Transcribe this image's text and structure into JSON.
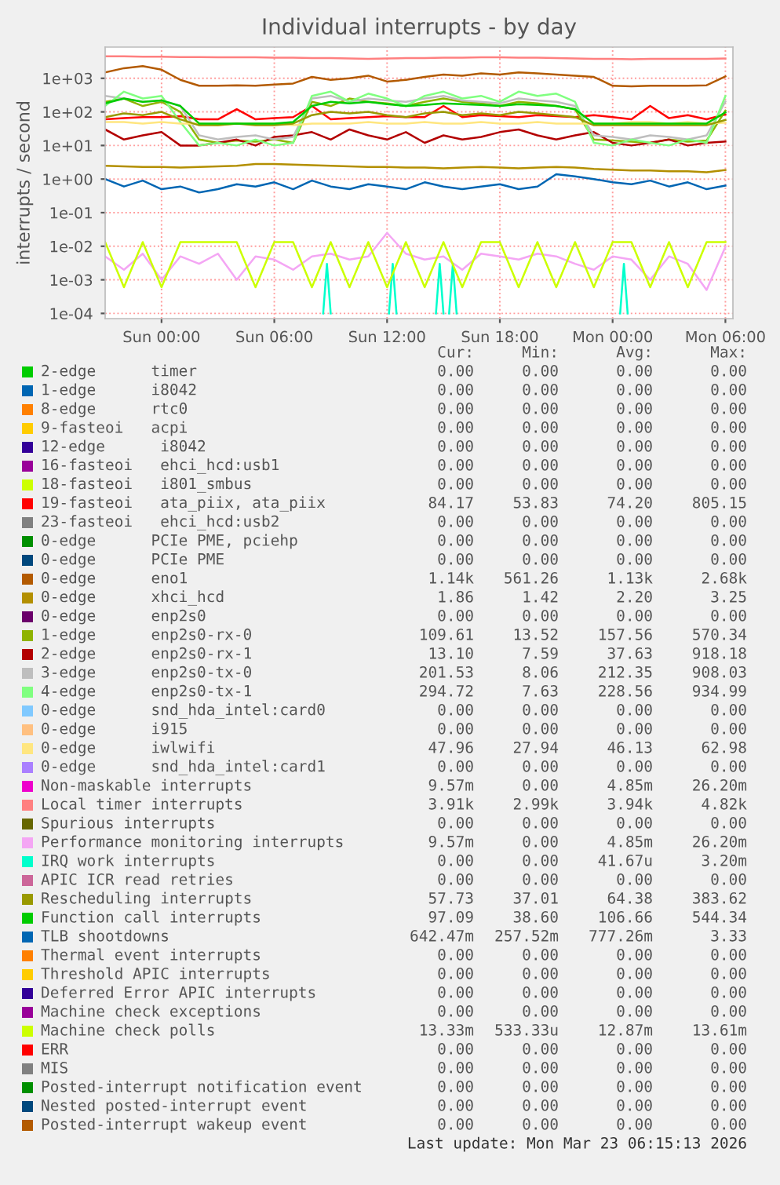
{
  "chart_data": [
    {
      "type": "line",
      "title": "Individual interrupts - by day",
      "ylabel": "interrupts / second",
      "log": "y",
      "grid": true,
      "legend": "bottom",
      "line_style": "solid",
      "marker": "none",
      "xlim": [
        "2026-03-21T21:00",
        "2026-03-23T06:24"
      ],
      "ylim": [
        7e-05,
        8500
      ],
      "xticks": [
        {
          "value": "2026-03-22T00:00",
          "label": "Sun 00:00"
        },
        {
          "value": "2026-03-22T06:00",
          "label": "Sun 06:00"
        },
        {
          "value": "2026-03-22T12:00",
          "label": "Sun 12:00"
        },
        {
          "value": "2026-03-22T18:00",
          "label": "Sun 18:00"
        },
        {
          "value": "2026-03-23T00:00",
          "label": "Mon 00:00"
        },
        {
          "value": "2026-03-23T06:00",
          "label": "Mon 06:00"
        }
      ],
      "yticks": [
        {
          "value": 0.0001,
          "label": "1e-04"
        },
        {
          "value": 0.001,
          "label": "1e-03"
        },
        {
          "value": 0.01,
          "label": "1e-02"
        },
        {
          "value": 0.1,
          "label": "1e-01"
        },
        {
          "value": 1,
          "label": "1e+00"
        },
        {
          "value": 10,
          "label": "1e+01"
        },
        {
          "value": 100,
          "label": "1e+02"
        },
        {
          "value": 1000,
          "label": "1e+03"
        }
      ],
      "x": [
        "2026-03-21T21:00",
        "2026-03-21T22:00",
        "2026-03-21T23:00",
        "2026-03-22T00:00",
        "2026-03-22T01:00",
        "2026-03-22T02:00",
        "2026-03-22T03:00",
        "2026-03-22T04:00",
        "2026-03-22T05:00",
        "2026-03-22T06:00",
        "2026-03-22T07:00",
        "2026-03-22T08:00",
        "2026-03-22T09:00",
        "2026-03-22T10:00",
        "2026-03-22T11:00",
        "2026-03-22T12:00",
        "2026-03-22T13:00",
        "2026-03-22T14:00",
        "2026-03-22T15:00",
        "2026-03-22T16:00",
        "2026-03-22T17:00",
        "2026-03-22T18:00",
        "2026-03-22T19:00",
        "2026-03-22T20:00",
        "2026-03-22T21:00",
        "2026-03-22T22:00",
        "2026-03-22T23:00",
        "2026-03-23T00:00",
        "2026-03-23T01:00",
        "2026-03-23T02:00",
        "2026-03-23T03:00",
        "2026-03-23T04:00",
        "2026-03-23T05:00",
        "2026-03-23T06:00"
      ],
      "series": [
        {
          "name": "2-edge      timer",
          "color": "#00cc00",
          "values": [
            null,
            null,
            null,
            null,
            null,
            null,
            null,
            null,
            null,
            null,
            null,
            null,
            null,
            null,
            null,
            null,
            null,
            null,
            null,
            null,
            null,
            null,
            null,
            null,
            null,
            null,
            null,
            null,
            null,
            null,
            null,
            null,
            null,
            null
          ]
        },
        {
          "name": "1-edge      i8042",
          "color": "#0066b3",
          "values": [
            null,
            null,
            null,
            null,
            null,
            null,
            null,
            null,
            null,
            null,
            null,
            null,
            null,
            null,
            null,
            null,
            null,
            null,
            null,
            null,
            null,
            null,
            null,
            null,
            null,
            null,
            null,
            null,
            null,
            null,
            null,
            null,
            null,
            null
          ]
        },
        {
          "name": "8-edge      rtc0",
          "color": "#ff8000",
          "values": [
            null,
            null,
            null,
            null,
            null,
            null,
            null,
            null,
            null,
            null,
            null,
            null,
            null,
            null,
            null,
            null,
            null,
            null,
            null,
            null,
            null,
            null,
            null,
            null,
            null,
            null,
            null,
            null,
            null,
            null,
            null,
            null,
            null,
            null
          ]
        },
        {
          "name": "9-fasteoi   acpi",
          "color": "#ffcc00",
          "values": [
            null,
            null,
            null,
            null,
            null,
            null,
            null,
            null,
            null,
            null,
            null,
            null,
            null,
            null,
            null,
            null,
            null,
            null,
            null,
            null,
            null,
            null,
            null,
            null,
            null,
            null,
            null,
            null,
            null,
            null,
            null,
            null,
            null,
            null
          ]
        },
        {
          "name": "12-edge      i8042",
          "color": "#330099",
          "values": [
            null,
            null,
            null,
            null,
            null,
            null,
            null,
            null,
            null,
            null,
            null,
            null,
            null,
            null,
            null,
            null,
            null,
            null,
            null,
            null,
            null,
            null,
            null,
            null,
            null,
            null,
            null,
            null,
            null,
            null,
            null,
            null,
            null,
            null
          ]
        },
        {
          "name": "16-fasteoi   ehci_hcd:usb1",
          "color": "#990099",
          "values": [
            null,
            null,
            null,
            null,
            null,
            null,
            null,
            null,
            null,
            null,
            null,
            null,
            null,
            null,
            null,
            null,
            null,
            null,
            null,
            null,
            null,
            null,
            null,
            null,
            null,
            null,
            null,
            null,
            null,
            null,
            null,
            null,
            null,
            null
          ]
        },
        {
          "name": "18-fasteoi   i801_smbus",
          "color": "#ccff00",
          "values": [
            null,
            null,
            null,
            null,
            null,
            null,
            null,
            null,
            null,
            null,
            null,
            null,
            null,
            null,
            null,
            null,
            null,
            null,
            null,
            null,
            null,
            null,
            null,
            null,
            null,
            null,
            null,
            null,
            null,
            null,
            null,
            null,
            null,
            null
          ]
        },
        {
          "name": "19-fasteoi   ata_piix, ata_piix",
          "color": "#ff0000",
          "values": [
            60,
            65,
            70,
            70,
            75,
            60,
            60,
            120,
            60,
            65,
            70,
            150,
            60,
            65,
            70,
            75,
            70,
            70,
            150,
            70,
            80,
            75,
            70,
            80,
            75,
            70,
            80,
            70,
            60,
            150,
            65,
            80,
            60,
            84.17
          ]
        },
        {
          "name": "23-fasteoi   ehci_hcd:usb2",
          "color": "#808080",
          "values": [
            null,
            null,
            null,
            null,
            null,
            null,
            null,
            null,
            null,
            null,
            null,
            null,
            null,
            null,
            null,
            null,
            null,
            null,
            null,
            null,
            null,
            null,
            null,
            null,
            null,
            null,
            null,
            null,
            null,
            null,
            null,
            null,
            null,
            null
          ]
        },
        {
          "name": "0-edge      PCIe PME, pciehp",
          "color": "#008f00",
          "values": [
            null,
            null,
            null,
            null,
            null,
            null,
            null,
            null,
            null,
            null,
            null,
            null,
            null,
            null,
            null,
            null,
            null,
            null,
            null,
            null,
            null,
            null,
            null,
            null,
            null,
            null,
            null,
            null,
            null,
            null,
            null,
            null,
            null,
            null
          ]
        },
        {
          "name": "0-edge      PCIe PME",
          "color": "#00487d",
          "values": [
            null,
            null,
            null,
            null,
            null,
            null,
            null,
            null,
            null,
            null,
            null,
            null,
            null,
            null,
            null,
            null,
            null,
            null,
            null,
            null,
            null,
            null,
            null,
            null,
            null,
            null,
            null,
            null,
            null,
            null,
            null,
            null,
            null,
            null
          ]
        },
        {
          "name": "0-edge      eno1",
          "color": "#b35a00",
          "values": [
            1500,
            2000,
            2300,
            1800,
            900,
            600,
            600,
            620,
            600,
            650,
            700,
            1100,
            900,
            1000,
            1200,
            800,
            900,
            1100,
            1300,
            1200,
            1400,
            1300,
            1500,
            1400,
            1300,
            1200,
            1100,
            600,
            580,
            600,
            600,
            600,
            620,
            1140
          ]
        },
        {
          "name": "0-edge      xhci_hcd",
          "color": "#b38f00",
          "values": [
            2.5,
            2.4,
            2.3,
            2.3,
            2.2,
            2.3,
            2.4,
            2.5,
            2.8,
            2.8,
            2.7,
            2.6,
            2.5,
            2.4,
            2.3,
            2.3,
            2.2,
            2.2,
            2.1,
            2.2,
            2.3,
            2.2,
            2.1,
            2.2,
            2.3,
            2.2,
            2.0,
            1.9,
            1.8,
            1.8,
            1.7,
            1.7,
            1.6,
            1.86
          ]
        },
        {
          "name": "0-edge      enp2s0",
          "color": "#6b006b",
          "values": [
            null,
            null,
            null,
            null,
            null,
            null,
            null,
            null,
            null,
            null,
            null,
            null,
            null,
            null,
            null,
            null,
            null,
            null,
            null,
            null,
            null,
            null,
            null,
            null,
            null,
            null,
            null,
            null,
            null,
            null,
            null,
            null,
            null,
            null
          ]
        },
        {
          "name": "1-edge      enp2s0-rx-0",
          "color": "#8fb300",
          "values": [
            200,
            250,
            150,
            200,
            100,
            15,
            12,
            14,
            13,
            15,
            12,
            200,
            150,
            250,
            200,
            180,
            150,
            200,
            250,
            200,
            180,
            150,
            200,
            180,
            150,
            120,
            15,
            14,
            13,
            12,
            15,
            13,
            14,
            109.61
          ]
        },
        {
          "name": "2-edge      enp2s0-rx-1",
          "color": "#b30000",
          "values": [
            30,
            15,
            20,
            25,
            10,
            10,
            12,
            15,
            10,
            18,
            20,
            25,
            15,
            30,
            20,
            15,
            25,
            12,
            20,
            15,
            18,
            25,
            30,
            20,
            15,
            20,
            25,
            12,
            10,
            12,
            15,
            10,
            12,
            13.1
          ]
        },
        {
          "name": "3-edge      enp2s0-tx-0",
          "color": "#bebebe",
          "values": [
            300,
            250,
            200,
            220,
            150,
            20,
            15,
            18,
            20,
            15,
            18,
            250,
            300,
            200,
            250,
            220,
            200,
            250,
            300,
            220,
            200,
            180,
            250,
            220,
            200,
            150,
            20,
            18,
            15,
            20,
            18,
            15,
            20,
            201.53
          ]
        },
        {
          "name": "4-edge      enp2s0-tx-1",
          "color": "#80ff80",
          "values": [
            150,
            400,
            250,
            300,
            50,
            10,
            12,
            10,
            15,
            10,
            12,
            300,
            400,
            200,
            350,
            250,
            150,
            300,
            400,
            250,
            300,
            200,
            400,
            300,
            350,
            200,
            12,
            10,
            15,
            12,
            10,
            15,
            12,
            294.72
          ]
        },
        {
          "name": "0-edge      snd_hda_intel:card0",
          "color": "#80c9ff",
          "values": [
            null,
            null,
            null,
            null,
            null,
            null,
            null,
            null,
            null,
            null,
            null,
            null,
            null,
            null,
            null,
            null,
            null,
            null,
            null,
            null,
            null,
            null,
            null,
            null,
            null,
            null,
            null,
            null,
            null,
            null,
            null,
            null,
            null,
            null
          ]
        },
        {
          "name": "0-edge      i915",
          "color": "#ffc080",
          "values": [
            null,
            null,
            null,
            null,
            null,
            null,
            null,
            null,
            null,
            null,
            null,
            null,
            null,
            null,
            null,
            null,
            null,
            null,
            null,
            null,
            null,
            null,
            null,
            null,
            null,
            null,
            null,
            null,
            null,
            null,
            null,
            null,
            null,
            null
          ]
        },
        {
          "name": "0-edge      iwlwifi",
          "color": "#ffe680",
          "values": [
            50,
            50,
            45,
            50,
            45,
            45,
            40,
            45,
            45,
            45,
            40,
            45,
            45,
            45,
            50,
            45,
            45,
            50,
            45,
            45,
            50,
            45,
            45,
            50,
            45,
            45,
            45,
            45,
            50,
            50,
            45,
            50,
            45,
            47.96
          ]
        },
        {
          "name": "0-edge      snd_hda_intel:card1",
          "color": "#aa80ff",
          "values": [
            null,
            null,
            null,
            null,
            null,
            null,
            null,
            null,
            null,
            null,
            null,
            null,
            null,
            null,
            null,
            null,
            null,
            null,
            null,
            null,
            null,
            null,
            null,
            null,
            null,
            null,
            null,
            null,
            null,
            null,
            null,
            null,
            null,
            null
          ]
        },
        {
          "name": "Non-maskable interrupts",
          "color": "#ee00cc",
          "values": [
            null,
            null,
            null,
            null,
            null,
            null,
            null,
            null,
            null,
            null,
            null,
            null,
            null,
            null,
            null,
            null,
            null,
            null,
            null,
            null,
            null,
            null,
            null,
            null,
            null,
            null,
            null,
            null,
            null,
            null,
            null,
            null,
            null,
            null
          ]
        },
        {
          "name": "Local timer interrupts",
          "color": "#ff8080",
          "values": [
            4500,
            4500,
            4400,
            4400,
            4300,
            4300,
            4200,
            4200,
            4200,
            4100,
            4100,
            4000,
            4000,
            3900,
            3800,
            3900,
            4000,
            4000,
            4100,
            4100,
            4200,
            4200,
            4100,
            4100,
            4000,
            3900,
            3800,
            3800,
            3700,
            3800,
            3800,
            3800,
            3800,
            3900
          ]
        },
        {
          "name": "Spurious interrupts",
          "color": "#666600",
          "values": [
            null,
            null,
            null,
            null,
            null,
            null,
            null,
            null,
            null,
            null,
            null,
            null,
            null,
            null,
            null,
            null,
            null,
            null,
            null,
            null,
            null,
            null,
            null,
            null,
            null,
            null,
            null,
            null,
            null,
            null,
            null,
            null,
            null,
            null
          ]
        },
        {
          "name": "Performance monitoring interrupts",
          "color": "#f4a6f4",
          "values": [
            0.005,
            0.002,
            0.006,
            0.001,
            0.005,
            0.003,
            0.006,
            0.001,
            0.005,
            0.004,
            0.002,
            0.005,
            0.006,
            0.004,
            0.005,
            0.025,
            0.006,
            0.004,
            0.005,
            0.002,
            0.006,
            0.005,
            0.004,
            0.006,
            0.005,
            0.003,
            0.002,
            0.005,
            0.004,
            0.001,
            0.005,
            0.003,
            0.0005,
            0.00957
          ]
        },
        {
          "name": "IRQ work interrupts",
          "color": "#00ffcc",
          "x": [
            "2026-03-22T08:36",
            "2026-03-22T08:48",
            "2026-03-22T09:00",
            "2026-03-22T09:06",
            "2026-03-22T12:06",
            "2026-03-22T12:18",
            "2026-03-22T12:30",
            "2026-03-22T12:36",
            "2026-03-22T14:36",
            "2026-03-22T14:48",
            "2026-03-22T15:00",
            "2026-03-22T15:06",
            "2026-03-22T15:18",
            "2026-03-22T15:30",
            "2026-03-22T15:42",
            "2026-03-22T15:48",
            "2026-03-23T00:24",
            "2026-03-23T00:36",
            "2026-03-23T00:48"
          ],
          "values": [
            0.0001,
            0.003,
            0.0001,
            null,
            0.0001,
            0.003,
            0.0001,
            null,
            0.0001,
            0.003,
            0.0001,
            null,
            0.0001,
            0.003,
            0.0001,
            null,
            0.0001,
            0.003,
            0.0001
          ]
        },
        {
          "name": "APIC ICR read retries",
          "color": "#cc6699",
          "values": [
            null,
            null,
            null,
            null,
            null,
            null,
            null,
            null,
            null,
            null,
            null,
            null,
            null,
            null,
            null,
            null,
            null,
            null,
            null,
            null,
            null,
            null,
            null,
            null,
            null,
            null,
            null,
            null,
            null,
            null,
            null,
            null,
            null,
            null
          ]
        },
        {
          "name": "Rescheduling interrupts",
          "color": "#999900",
          "values": [
            70,
            90,
            80,
            100,
            60,
            40,
            40,
            45,
            40,
            40,
            45,
            80,
            100,
            90,
            100,
            80,
            70,
            90,
            100,
            80,
            90,
            80,
            100,
            90,
            80,
            70,
            40,
            40,
            40,
            40,
            40,
            40,
            40,
            57.73
          ]
        },
        {
          "name": "Function call interrupts",
          "color": "#00cc00",
          "values": [
            180,
            250,
            200,
            220,
            150,
            45,
            45,
            45,
            45,
            45,
            50,
            150,
            200,
            180,
            200,
            170,
            150,
            160,
            180,
            170,
            160,
            150,
            170,
            160,
            150,
            120,
            45,
            45,
            45,
            45,
            45,
            45,
            45,
            97.09
          ]
        },
        {
          "name": "TLB shootdowns",
          "color": "#0066b3",
          "values": [
            1.0,
            0.6,
            0.9,
            0.5,
            0.6,
            0.4,
            0.5,
            0.7,
            0.6,
            0.8,
            0.5,
            0.9,
            0.6,
            0.5,
            0.7,
            0.6,
            0.5,
            0.8,
            0.6,
            0.5,
            0.6,
            0.7,
            0.5,
            0.6,
            1.4,
            1.2,
            1.0,
            0.8,
            0.7,
            0.9,
            0.6,
            0.8,
            0.5,
            0.64
          ]
        },
        {
          "name": "Thermal event interrupts",
          "color": "#ff8000",
          "values": [
            null,
            null,
            null,
            null,
            null,
            null,
            null,
            null,
            null,
            null,
            null,
            null,
            null,
            null,
            null,
            null,
            null,
            null,
            null,
            null,
            null,
            null,
            null,
            null,
            null,
            null,
            null,
            null,
            null,
            null,
            null,
            null,
            null,
            null
          ]
        },
        {
          "name": "Threshold APIC interrupts",
          "color": "#ffcc00",
          "values": [
            null,
            null,
            null,
            null,
            null,
            null,
            null,
            null,
            null,
            null,
            null,
            null,
            null,
            null,
            null,
            null,
            null,
            null,
            null,
            null,
            null,
            null,
            null,
            null,
            null,
            null,
            null,
            null,
            null,
            null,
            null,
            null,
            null,
            null
          ]
        },
        {
          "name": "Deferred Error APIC interrupts",
          "color": "#330099",
          "values": [
            null,
            null,
            null,
            null,
            null,
            null,
            null,
            null,
            null,
            null,
            null,
            null,
            null,
            null,
            null,
            null,
            null,
            null,
            null,
            null,
            null,
            null,
            null,
            null,
            null,
            null,
            null,
            null,
            null,
            null,
            null,
            null,
            null,
            null
          ]
        },
        {
          "name": "Machine check exceptions",
          "color": "#990099",
          "values": [
            null,
            null,
            null,
            null,
            null,
            null,
            null,
            null,
            null,
            null,
            null,
            null,
            null,
            null,
            null,
            null,
            null,
            null,
            null,
            null,
            null,
            null,
            null,
            null,
            null,
            null,
            null,
            null,
            null,
            null,
            null,
            null,
            null,
            null
          ]
        },
        {
          "name": "Machine check polls",
          "color": "#ccff00",
          "values": [
            0.0133,
            0.0006,
            0.0133,
            0.0006,
            0.0133,
            0.0133,
            0.0133,
            0.0133,
            0.0006,
            0.0133,
            0.0133,
            0.0006,
            0.0133,
            0.0006,
            0.0133,
            0.0006,
            0.0133,
            0.0006,
            0.0133,
            0.0006,
            0.0133,
            0.0133,
            0.0006,
            0.0133,
            0.0006,
            0.0133,
            0.0006,
            0.0133,
            0.0133,
            0.0006,
            0.0133,
            0.0006,
            0.0133,
            0.0133
          ]
        },
        {
          "name": "ERR",
          "color": "#ff0000",
          "values": [
            null,
            null,
            null,
            null,
            null,
            null,
            null,
            null,
            null,
            null,
            null,
            null,
            null,
            null,
            null,
            null,
            null,
            null,
            null,
            null,
            null,
            null,
            null,
            null,
            null,
            null,
            null,
            null,
            null,
            null,
            null,
            null,
            null,
            null
          ]
        },
        {
          "name": "MIS",
          "color": "#808080",
          "values": [
            null,
            null,
            null,
            null,
            null,
            null,
            null,
            null,
            null,
            null,
            null,
            null,
            null,
            null,
            null,
            null,
            null,
            null,
            null,
            null,
            null,
            null,
            null,
            null,
            null,
            null,
            null,
            null,
            null,
            null,
            null,
            null,
            null,
            null
          ]
        },
        {
          "name": "Posted-interrupt notification event",
          "color": "#008f00",
          "values": [
            null,
            null,
            null,
            null,
            null,
            null,
            null,
            null,
            null,
            null,
            null,
            null,
            null,
            null,
            null,
            null,
            null,
            null,
            null,
            null,
            null,
            null,
            null,
            null,
            null,
            null,
            null,
            null,
            null,
            null,
            null,
            null,
            null,
            null
          ]
        },
        {
          "name": "Nested posted-interrupt event",
          "color": "#00487d",
          "values": [
            null,
            null,
            null,
            null,
            null,
            null,
            null,
            null,
            null,
            null,
            null,
            null,
            null,
            null,
            null,
            null,
            null,
            null,
            null,
            null,
            null,
            null,
            null,
            null,
            null,
            null,
            null,
            null,
            null,
            null,
            null,
            null,
            null,
            null
          ]
        },
        {
          "name": "Posted-interrupt wakeup event",
          "color": "#b35a00",
          "values": [
            null,
            null,
            null,
            null,
            null,
            null,
            null,
            null,
            null,
            null,
            null,
            null,
            null,
            null,
            null,
            null,
            null,
            null,
            null,
            null,
            null,
            null,
            null,
            null,
            null,
            null,
            null,
            null,
            null,
            null,
            null,
            null,
            null,
            null
          ]
        }
      ]
    },
    {
      "type": "other",
      "annotations": [
        "Cur:",
        "Min:",
        "Avg:",
        "Max:",
        "0.00",
        "0.00",
        "0.00",
        "0.00",
        "0.00",
        "0.00",
        "0.00",
        "0.00",
        "0.00",
        "0.00",
        "0.00",
        "0.00",
        "0.00",
        "0.00",
        "0.00",
        "0.00",
        "0.00",
        "0.00",
        "0.00",
        "0.00",
        "0.00",
        "0.00",
        "0.00",
        "0.00",
        "0.00",
        "0.00",
        "0.00",
        "0.00",
        "84.17",
        "53.83",
        "74.20",
        "805.15",
        "0.00",
        "0.00",
        "0.00",
        "0.00",
        "0.00",
        "0.00",
        "0.00",
        "0.00",
        "0.00",
        "0.00",
        "0.00",
        "0.00",
        "1.14k",
        "561.26",
        "1.13k",
        "2.68k",
        "1.86",
        "1.42",
        "2.20",
        "3.25",
        "0.00",
        "0.00",
        "0.00",
        "0.00",
        "109.61",
        "13.52",
        "157.56",
        "570.34",
        "13.10",
        "7.59",
        "37.63",
        "918.18",
        "201.53",
        "8.06",
        "212.35",
        "908.03",
        "294.72",
        "7.63",
        "228.56",
        "934.99",
        "0.00",
        "0.00",
        "0.00",
        "0.00",
        "0.00",
        "0.00",
        "0.00",
        "0.00",
        "47.96",
        "27.94",
        "46.13",
        "62.98",
        "0.00",
        "0.00",
        "0.00",
        "0.00",
        "9.57m",
        "0.00",
        "4.85m",
        "26.20m",
        "3.91k",
        "2.99k",
        "3.94k",
        "4.82k",
        "0.00",
        "0.00",
        "0.00",
        "0.00",
        "9.57m",
        "0.00",
        "4.85m",
        "26.20m",
        "0.00",
        "0.00",
        "41.67u",
        "3.20m",
        "0.00",
        "0.00",
        "0.00",
        "0.00",
        "57.73",
        "37.01",
        "64.38",
        "383.62",
        "97.09",
        "38.60",
        "106.66",
        "544.34",
        "642.47m",
        "257.52m",
        "777.26m",
        "3.33",
        "0.00",
        "0.00",
        "0.00",
        "0.00",
        "0.00",
        "0.00",
        "0.00",
        "0.00",
        "0.00",
        "0.00",
        "0.00",
        "0.00",
        "0.00",
        "0.00",
        "0.00",
        "0.00",
        "13.33m",
        "533.33u",
        "12.87m",
        "13.61m",
        "0.00",
        "0.00",
        "0.00",
        "0.00",
        "0.00",
        "0.00",
        "0.00",
        "0.00",
        "0.00",
        "0.00",
        "0.00",
        "0.00",
        "0.00",
        "0.00",
        "0.00",
        "0.00",
        "0.00",
        "0.00",
        "0.00",
        "0.00",
        "Last update: Mon Mar 23 06:15:13 2026"
      ]
    }
  ]
}
